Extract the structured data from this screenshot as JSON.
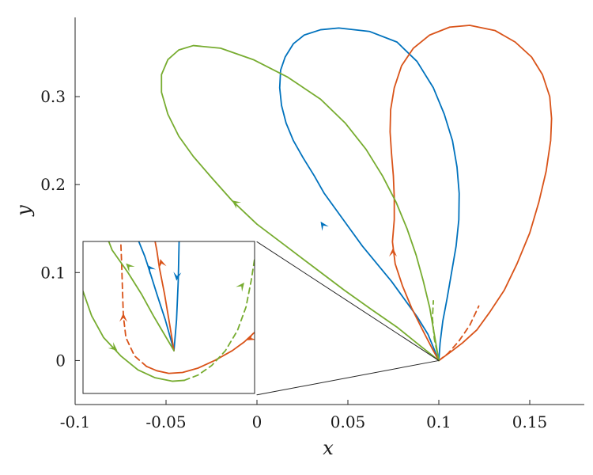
{
  "chart_data": {
    "type": "line",
    "xlabel": "x",
    "ylabel": "y",
    "xlim": [
      -0.1,
      0.18
    ],
    "ylim": [
      -0.05,
      0.39
    ],
    "x_ticks": [
      {
        "value": -0.1,
        "label": "-0.1"
      },
      {
        "value": -0.05,
        "label": "-0.05"
      },
      {
        "value": 0,
        "label": "0"
      },
      {
        "value": 0.05,
        "label": "0.05"
      },
      {
        "value": 0.1,
        "label": "0.1"
      },
      {
        "value": 0.15,
        "label": "0.15"
      }
    ],
    "y_ticks": [
      {
        "value": 0,
        "label": "0"
      },
      {
        "value": 0.1,
        "label": "0.1"
      },
      {
        "value": 0.2,
        "label": "0.2"
      },
      {
        "value": 0.3,
        "label": "0.3"
      }
    ],
    "grid": false,
    "legend": "none",
    "colors": {
      "blue": "#0072BD",
      "orange": "#D95319",
      "green": "#77AC30",
      "axis": "#262626"
    },
    "series": [
      {
        "color": "#0072BD",
        "style": "solid",
        "points": [
          [
            0.1,
            0
          ],
          [
            0.1007,
            0.02
          ],
          [
            0.1022,
            0.045
          ],
          [
            0.1045,
            0.07
          ],
          [
            0.107,
            0.1
          ],
          [
            0.1095,
            0.13
          ],
          [
            0.111,
            0.16
          ],
          [
            0.1112,
            0.19
          ],
          [
            0.11,
            0.22
          ],
          [
            0.1075,
            0.25
          ],
          [
            0.103,
            0.28
          ],
          [
            0.097,
            0.31
          ],
          [
            0.088,
            0.34
          ],
          [
            0.077,
            0.362
          ],
          [
            0.062,
            0.374
          ],
          [
            0.045,
            0.378
          ],
          [
            0.035,
            0.376
          ],
          [
            0.026,
            0.37
          ],
          [
            0.02,
            0.36
          ],
          [
            0.0155,
            0.345
          ],
          [
            0.013,
            0.33
          ],
          [
            0.0125,
            0.31
          ],
          [
            0.0135,
            0.29
          ],
          [
            0.016,
            0.27
          ],
          [
            0.02,
            0.25
          ],
          [
            0.0255,
            0.23
          ],
          [
            0.0315,
            0.21
          ],
          [
            0.037,
            0.19
          ],
          [
            0.044,
            0.17
          ],
          [
            0.051,
            0.15
          ],
          [
            0.058,
            0.13
          ],
          [
            0.066,
            0.11
          ],
          [
            0.074,
            0.09
          ],
          [
            0.081,
            0.07
          ],
          [
            0.088,
            0.05
          ],
          [
            0.094,
            0.03
          ],
          [
            0.1,
            0
          ]
        ],
        "arrows": [
          {
            "at": [
              0.035,
              0.158
            ],
            "dir": [
              -0.0125,
              0.0385
            ]
          }
        ]
      },
      {
        "color": "#D95319",
        "style": "solid",
        "points": [
          [
            0.1,
            0
          ],
          [
            0.106,
            0.009
          ],
          [
            0.113,
            0.02
          ],
          [
            0.121,
            0.035
          ],
          [
            0.128,
            0.055
          ],
          [
            0.136,
            0.08
          ],
          [
            0.143,
            0.11
          ],
          [
            0.15,
            0.145
          ],
          [
            0.155,
            0.18
          ],
          [
            0.159,
            0.215
          ],
          [
            0.1615,
            0.25
          ],
          [
            0.162,
            0.275
          ],
          [
            0.161,
            0.3
          ],
          [
            0.157,
            0.325
          ],
          [
            0.151,
            0.345
          ],
          [
            0.142,
            0.362
          ],
          [
            0.131,
            0.375
          ],
          [
            0.117,
            0.381
          ],
          [
            0.106,
            0.379
          ],
          [
            0.095,
            0.37
          ],
          [
            0.086,
            0.355
          ],
          [
            0.0795,
            0.335
          ],
          [
            0.0755,
            0.31
          ],
          [
            0.0735,
            0.285
          ],
          [
            0.0732,
            0.26
          ],
          [
            0.074,
            0.235
          ],
          [
            0.075,
            0.21
          ],
          [
            0.0755,
            0.185
          ],
          [
            0.0755,
            0.16
          ],
          [
            0.0745,
            0.135
          ],
          [
            0.076,
            0.11
          ],
          [
            0.08,
            0.085
          ],
          [
            0.085,
            0.06
          ],
          [
            0.091,
            0.035
          ],
          [
            0.096,
            0.015
          ],
          [
            0.1,
            0
          ]
        ],
        "arrows": [
          {
            "at": [
              0.0748,
              0.128
            ],
            "dir": [
              0,
              1
            ]
          }
        ]
      },
      {
        "color": "#D95319",
        "style": "dashed",
        "points": [
          [
            0.1,
            0
          ],
          [
            0.105,
            0.008
          ],
          [
            0.111,
            0.022
          ],
          [
            0.117,
            0.04
          ],
          [
            0.122,
            0.062
          ]
        ]
      },
      {
        "color": "#77AC30",
        "style": "solid",
        "points": [
          [
            0.1,
            0
          ],
          [
            0.0975,
            0.03
          ],
          [
            0.095,
            0.06
          ],
          [
            0.0915,
            0.09
          ],
          [
            0.0875,
            0.12
          ],
          [
            0.0825,
            0.15
          ],
          [
            0.0765,
            0.18
          ],
          [
            0.069,
            0.21
          ],
          [
            0.06,
            0.24
          ],
          [
            0.0485,
            0.27
          ],
          [
            0.035,
            0.297
          ],
          [
            0.017,
            0.322
          ],
          [
            -0.002,
            0.342
          ],
          [
            -0.02,
            0.355
          ],
          [
            -0.035,
            0.358
          ],
          [
            -0.043,
            0.353
          ],
          [
            -0.049,
            0.342
          ],
          [
            -0.0525,
            0.325
          ],
          [
            -0.0525,
            0.305
          ],
          [
            -0.049,
            0.28
          ],
          [
            -0.043,
            0.255
          ],
          [
            -0.035,
            0.232
          ],
          [
            -0.025,
            0.208
          ],
          [
            -0.0138,
            0.182
          ],
          [
            0,
            0.155
          ],
          [
            0.016,
            0.13
          ],
          [
            0.032,
            0.105
          ],
          [
            0.048,
            0.08
          ],
          [
            0.063,
            0.058
          ],
          [
            0.077,
            0.038
          ],
          [
            0.089,
            0.018
          ],
          [
            0.1,
            0
          ]
        ],
        "arrows": [
          {
            "at": [
              -0.0138,
              0.182
            ],
            "dir": [
              -0.55,
              0.84
            ]
          }
        ]
      },
      {
        "color": "#77AC30",
        "style": "dashed",
        "points": [
          [
            0.1,
            0
          ],
          [
            0.0975,
            0.025
          ],
          [
            0.0965,
            0.048
          ],
          [
            0.097,
            0.068
          ]
        ]
      },
      {
        "color": "#262626",
        "style": "solid",
        "points": [
          [
            0.0,
            0.135
          ],
          [
            0.1,
            0
          ]
        ]
      },
      {
        "color": "#262626",
        "style": "solid",
        "points": [
          [
            0.0,
            -0.039
          ],
          [
            0.1,
            0
          ]
        ]
      }
    ],
    "inset": {
      "xlim": [
        -0.1,
        0
      ],
      "ylim": [
        -0.039,
        0.135
      ],
      "series": [
        {
          "color": "#0072BD",
          "style": "solid",
          "points": [
            [
              -0.047,
              0.01
            ],
            [
              -0.052,
              0.045
            ],
            [
              -0.057,
              0.075
            ],
            [
              -0.061,
              0.1
            ],
            [
              -0.064,
              0.118
            ],
            [
              -0.0675,
              0.135
            ]
          ],
          "arrows": [
            {
              "at": [
                -0.0625,
                0.108
              ],
              "dir": [
                -0.4,
                1
              ]
            }
          ]
        },
        {
          "color": "#0072BD",
          "style": "solid",
          "points": [
            [
              -0.047,
              0.01
            ],
            [
              -0.0455,
              0.045
            ],
            [
              -0.0445,
              0.09
            ],
            [
              -0.044,
              0.135
            ]
          ],
          "arrows": [
            {
              "at": [
                -0.0455,
                0.09
              ],
              "dir": [
                -0.05,
                -1
              ]
            }
          ]
        },
        {
          "color": "#D95319",
          "style": "solid",
          "points": [
            [
              -0.047,
              0.01
            ],
            [
              -0.0495,
              0.04
            ],
            [
              -0.0525,
              0.075
            ],
            [
              -0.0555,
              0.105
            ],
            [
              -0.057,
              0.125
            ],
            [
              -0.058,
              0.135
            ]
          ],
          "arrows": [
            {
              "at": [
                -0.055,
                0.115
              ],
              "dir": [
                -0.15,
                1
              ]
            }
          ]
        },
        {
          "color": "#D95319",
          "style": "solid",
          "points": [
            [
              -0.063,
              -0.008
            ],
            [
              -0.057,
              -0.013
            ],
            [
              -0.05,
              -0.016
            ],
            [
              -0.042,
              -0.015
            ],
            [
              -0.033,
              -0.01
            ],
            [
              -0.023,
              -0.001
            ],
            [
              -0.013,
              0.01
            ],
            [
              -0.006,
              0.02
            ],
            [
              0,
              0.031
            ]
          ],
          "arrows": [
            {
              "at": [
                -0.0045,
                0.022
              ],
              "dir": [
                -0.7,
                -0.7
              ]
            }
          ]
        },
        {
          "color": "#D95319",
          "style": "dashed",
          "points": [
            [
              -0.063,
              -0.008
            ],
            [
              -0.07,
              0.004
            ],
            [
              -0.075,
              0.025
            ],
            [
              -0.0765,
              0.05
            ],
            [
              -0.077,
              0.08
            ],
            [
              -0.0775,
              0.11
            ],
            [
              -0.078,
              0.135
            ]
          ],
          "arrows": [
            {
              "at": [
                -0.0765,
                0.053
              ],
              "dir": [
                0,
                1
              ]
            }
          ]
        },
        {
          "color": "#77AC30",
          "style": "solid",
          "points": [
            [
              -0.047,
              0.01
            ],
            [
              -0.053,
              0.03
            ],
            [
              -0.059,
              0.05
            ],
            [
              -0.066,
              0.075
            ],
            [
              -0.074,
              0.1
            ],
            [
              -0.083,
              0.125
            ],
            [
              -0.085,
              0.135
            ]
          ],
          "arrows": [
            {
              "at": [
                -0.075,
                0.11
              ],
              "dir": [
                -0.5,
                1
              ]
            }
          ]
        },
        {
          "color": "#77AC30",
          "style": "solid",
          "points": [
            [
              -0.1,
              0.078
            ],
            [
              -0.095,
              0.05
            ],
            [
              -0.088,
              0.025
            ],
            [
              -0.078,
              0.004
            ],
            [
              -0.068,
              -0.012
            ],
            [
              -0.058,
              -0.021
            ],
            [
              -0.048,
              -0.025
            ],
            [
              -0.041,
              -0.024
            ]
          ],
          "arrows": [
            {
              "at": [
                -0.08,
                0.01
              ],
              "dir": [
                0.5,
                -0.8
              ]
            }
          ]
        },
        {
          "color": "#77AC30",
          "style": "dashed",
          "points": [
            [
              -0.041,
              -0.024
            ],
            [
              -0.033,
              -0.018
            ],
            [
              -0.025,
              -0.007
            ],
            [
              -0.017,
              0.01
            ],
            [
              -0.01,
              0.033
            ],
            [
              -0.005,
              0.06
            ],
            [
              -0.002,
              0.09
            ],
            [
              0,
              0.115
            ],
            [
              0.0005,
              0.125
            ]
          ],
          "arrows": [
            {
              "at": [
                -0.006,
                0.088
              ],
              "dir": [
                0.4,
                1
              ]
            }
          ]
        }
      ]
    }
  }
}
